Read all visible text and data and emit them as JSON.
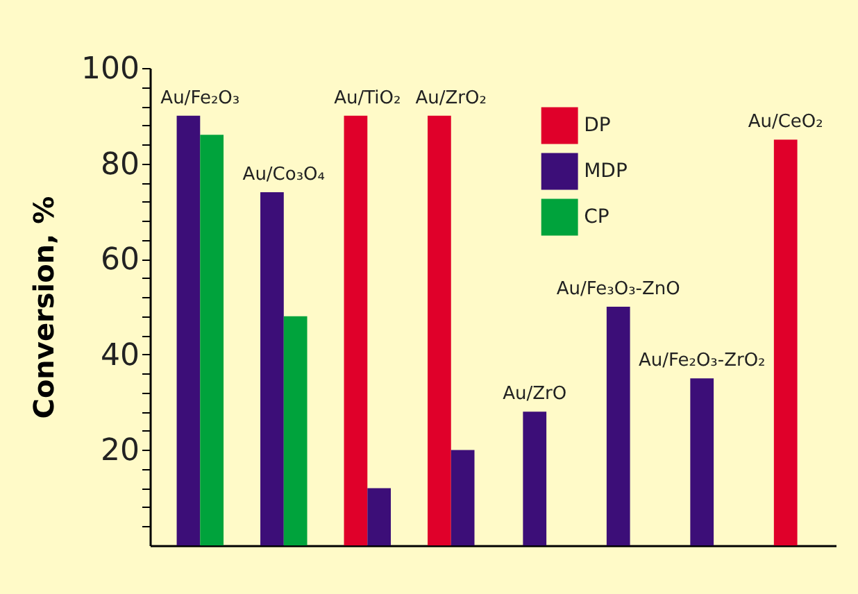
{
  "chart_data": {
    "type": "bar",
    "ylabel": "Conversion, %",
    "categories": [
      "Au/Fe₂O₃",
      "Au/Co₃O₄",
      "Au/TiO₂",
      "Au/ZrO₂",
      "Au/ZrO",
      "Au/Fe₃O₃-ZnO",
      "Au/Fe₂O₃-ZrO₂",
      "Au/CeO₂"
    ],
    "series": [
      {
        "name": "DP",
        "color": "#e0002a",
        "values": [
          null,
          null,
          90,
          90,
          null,
          null,
          null,
          85
        ]
      },
      {
        "name": "MDP",
        "color": "#3c0e78",
        "values": [
          90,
          74,
          12,
          20,
          28,
          50,
          35,
          null
        ]
      },
      {
        "name": "CP",
        "color": "#00a33c",
        "values": [
          86,
          48,
          null,
          null,
          null,
          null,
          null,
          null
        ]
      }
    ],
    "ylim": [
      0,
      100
    ],
    "yticks": [
      {
        "value": 4,
        "label": null
      },
      {
        "value": 8,
        "label": null
      },
      {
        "value": 12,
        "label": null
      },
      {
        "value": 16,
        "label": null
      },
      20,
      {
        "value": 24,
        "label": null
      },
      {
        "value": 28,
        "label": null
      },
      {
        "value": 32,
        "label": null
      },
      {
        "value": 36,
        "label": null
      },
      40,
      {
        "value": 44,
        "label": null
      },
      {
        "value": 48,
        "label": null
      },
      {
        "value": 52,
        "label": null
      },
      {
        "value": 56,
        "label": null
      },
      60,
      {
        "value": 64,
        "label": null
      },
      {
        "value": 68,
        "label": null
      },
      {
        "value": 72,
        "label": null
      },
      {
        "value": 76,
        "label": null
      },
      80,
      {
        "value": 84,
        "label": null
      },
      {
        "value": 88,
        "label": null
      },
      {
        "value": 92,
        "label": null
      },
      {
        "value": 96,
        "label": null
      },
      100
    ],
    "legend": "top right"
  }
}
